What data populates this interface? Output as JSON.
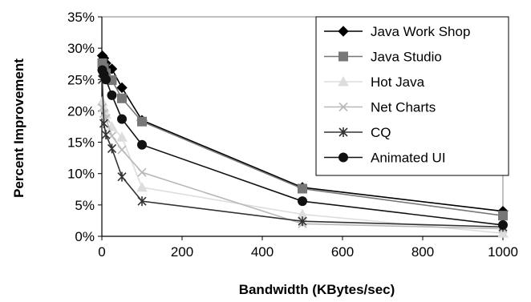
{
  "chart_data": {
    "type": "line",
    "xlabel": "Bandwidth (KBytes/sec)",
    "ylabel": "Percent Improvement",
    "xlim": [
      0,
      1000
    ],
    "ylim": [
      0,
      35
    ],
    "x_ticks": [
      "0",
      "200",
      "400",
      "600",
      "800",
      "1000"
    ],
    "y_ticks": [
      "0%",
      "5%",
      "10%",
      "15%",
      "20%",
      "25%",
      "30%",
      "35%"
    ],
    "grid": false,
    "legend_position": "top-right",
    "series": [
      {
        "name": "Java Work Shop",
        "marker": "diamond",
        "color": "#000000",
        "x": [
          1,
          5,
          10,
          25,
          50,
          100,
          500,
          1000
        ],
        "y": [
          28.8,
          28.4,
          27.6,
          26.7,
          23.7,
          18.5,
          7.8,
          4.0
        ]
      },
      {
        "name": "Java Studio",
        "marker": "square",
        "color": "#777777",
        "x": [
          1,
          5,
          10,
          25,
          50,
          100,
          500,
          1000
        ],
        "y": [
          27.6,
          26.8,
          26.0,
          24.9,
          22.0,
          18.3,
          7.6,
          3.3
        ]
      },
      {
        "name": "Hot Java",
        "marker": "triangle",
        "color": "#dddddd",
        "x": [
          1,
          5,
          10,
          25,
          50,
          100,
          500,
          1000
        ],
        "y": [
          21.5,
          20.5,
          19.5,
          17.5,
          15.8,
          7.8,
          3.5,
          0.5
        ]
      },
      {
        "name": "Net Charts",
        "marker": "x",
        "color": "#b8b8b8",
        "x": [
          1,
          5,
          10,
          25,
          50,
          100,
          500,
          1000
        ],
        "y": [
          20.5,
          19.6,
          18.8,
          16.0,
          13.8,
          10.2,
          2.0,
          1.2
        ]
      },
      {
        "name": "CQ",
        "marker": "star",
        "color": "#333333",
        "x": [
          1,
          5,
          10,
          25,
          50,
          100,
          500,
          1000
        ],
        "y": [
          25.0,
          18.0,
          16.2,
          14.0,
          9.5,
          5.6,
          2.4,
          1.5
        ]
      },
      {
        "name": "Animated UI",
        "marker": "circle",
        "color": "#111111",
        "x": [
          1,
          5,
          10,
          25,
          50,
          100,
          500,
          1000
        ],
        "y": [
          26.5,
          25.8,
          25.0,
          22.5,
          18.7,
          14.6,
          5.6,
          1.8
        ]
      }
    ]
  }
}
